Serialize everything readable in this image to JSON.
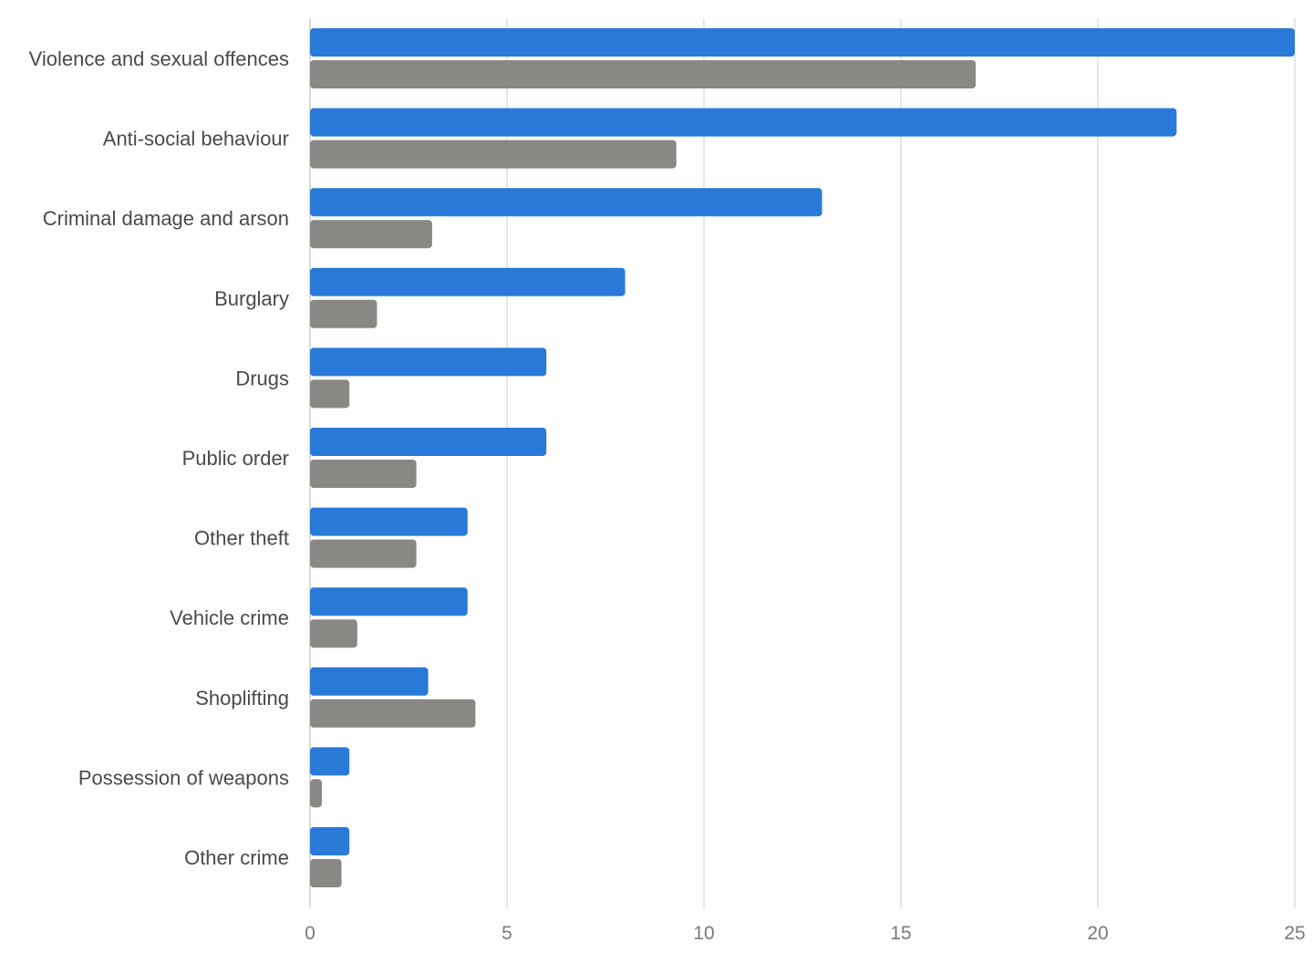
{
  "chart_data": {
    "type": "bar",
    "orientation": "horizontal",
    "categories": [
      "Violence and sexual offences",
      "Anti-social behaviour",
      "Criminal damage and arson",
      "Burglary",
      "Drugs",
      "Public order",
      "Other theft",
      "Vehicle crime",
      "Shoplifting",
      "Possession of weapons",
      "Other crime"
    ],
    "series": [
      {
        "color": "#2979d8",
        "values": [
          25,
          22,
          13,
          8,
          6,
          6,
          4,
          4,
          3,
          1,
          1
        ]
      },
      {
        "color": "#898884",
        "values": [
          16.9,
          9.3,
          3.1,
          1.7,
          1.0,
          2.7,
          2.7,
          1.2,
          4.2,
          0.3,
          0.8
        ]
      }
    ],
    "xlim": [
      0,
      25
    ],
    "xticks": [
      "0",
      "5",
      "10",
      "15",
      "20",
      "25"
    ],
    "grid": true,
    "legend": "none",
    "colors": {
      "gridline": "#dddddd",
      "axis": "#cccccc",
      "label": "#4a4a4a",
      "tick": "#7a7a7a"
    }
  }
}
